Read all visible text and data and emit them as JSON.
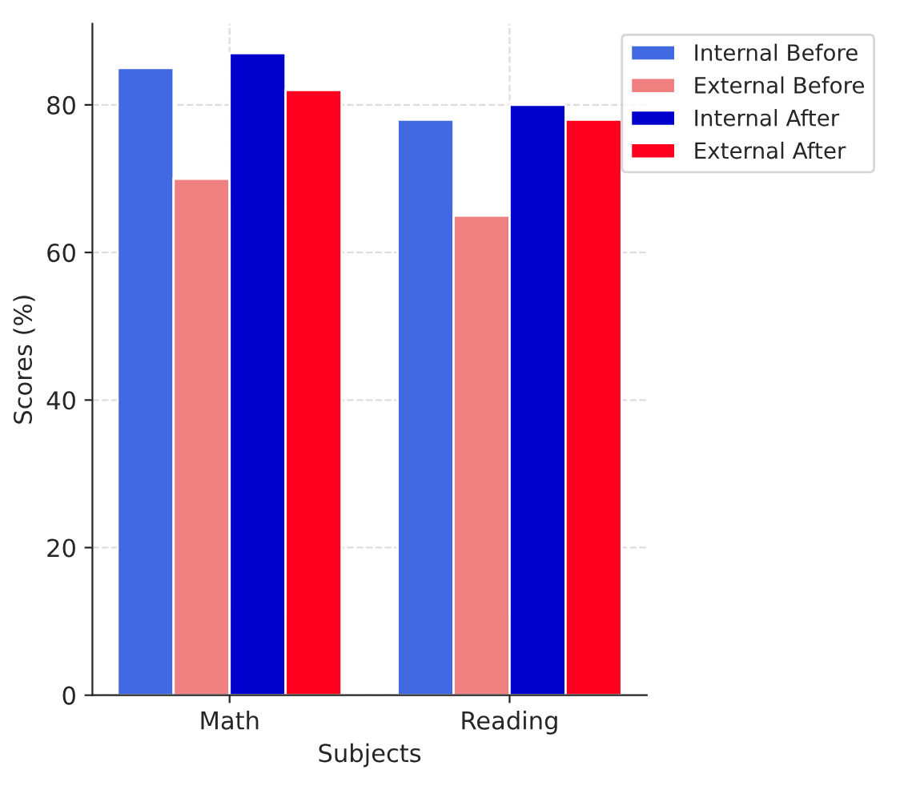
{
  "chart_data": {
    "type": "bar",
    "xlabel": "Subjects",
    "ylabel": "Scores (%)",
    "categories": [
      "Math",
      "Reading"
    ],
    "series": [
      {
        "name": "Internal Before",
        "color": "#4169e1",
        "values": [
          85,
          78
        ]
      },
      {
        "name": "External Before",
        "color": "#f08080",
        "values": [
          70,
          65
        ]
      },
      {
        "name": "Internal After",
        "color": "#0000cd",
        "values": [
          87,
          80
        ]
      },
      {
        "name": "External After",
        "color": "#ff0020",
        "values": [
          82,
          78
        ]
      }
    ],
    "ylim": [
      0,
      91
    ],
    "yticks": [
      0,
      20,
      40,
      60,
      80
    ],
    "grid": true,
    "legend": "top right"
  }
}
